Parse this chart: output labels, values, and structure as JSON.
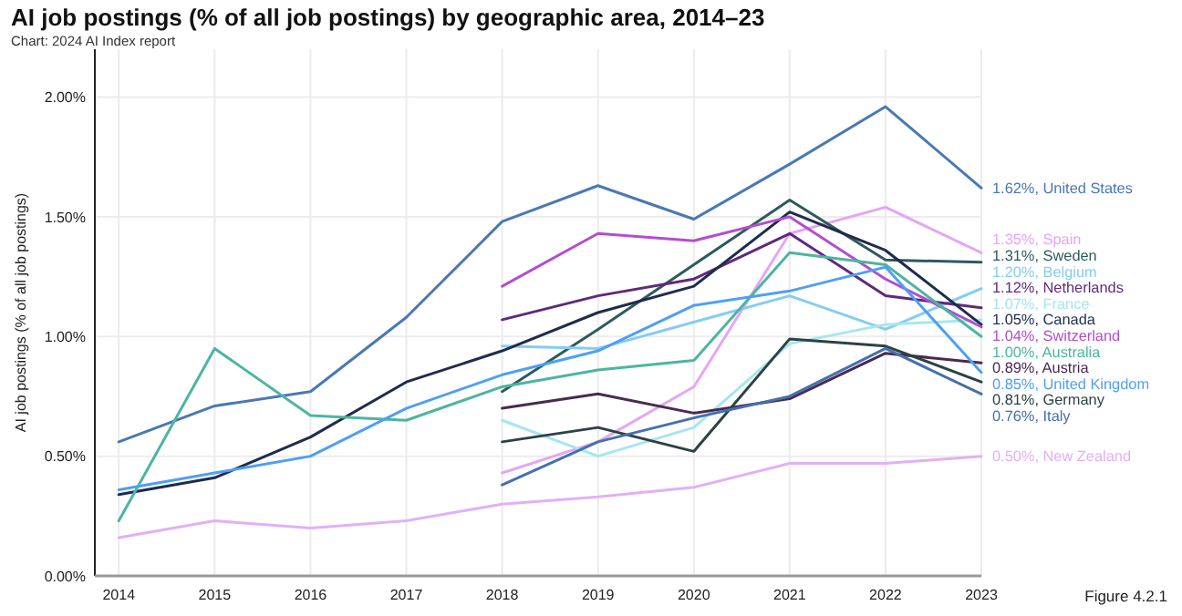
{
  "chart_data": {
    "type": "line",
    "title": "AI job postings (% of all job postings) by geographic area, 2014–23",
    "subtitle": "Chart: 2024 AI Index report",
    "ylabel": "AI job postings (% of all job postings)",
    "annotations": [
      "Figure 4.2.1"
    ],
    "xlim": [
      2013.75,
      2023
    ],
    "xticks": [
      2014,
      2015,
      2016,
      2017,
      2018,
      2019,
      2020,
      2021,
      2022,
      2023
    ],
    "ylim": [
      0,
      2.2
    ],
    "yticks": [
      {
        "value": 0,
        "label": "0.00%"
      },
      {
        "value": 0.5,
        "label": "0.50%"
      },
      {
        "value": 1,
        "label": "1.00%"
      },
      {
        "value": 1.5,
        "label": "1.50%"
      },
      {
        "value": 2,
        "label": "2.00%"
      }
    ],
    "grid": true,
    "marker": "none",
    "line_style": "solid",
    "x": [
      2014,
      2015,
      2016,
      2017,
      2018,
      2019,
      2020,
      2021,
      2022,
      2023
    ],
    "series": [
      {
        "color": "#4a78b5",
        "values": [
          0.56,
          0.71,
          0.77,
          1.08,
          1.48,
          1.63,
          1.49,
          1.72,
          1.96,
          1.62
        ],
        "value_labels": [
          null,
          null,
          null,
          null,
          null,
          null,
          null,
          null,
          null,
          "1.62%, United States"
        ]
      },
      {
        "color": "#e4a6f5",
        "values": [
          null,
          null,
          null,
          null,
          0.43,
          0.56,
          0.79,
          1.43,
          1.54,
          1.35
        ],
        "value_labels": [
          null,
          null,
          null,
          null,
          null,
          null,
          null,
          null,
          null,
          "1.35%, Spain"
        ]
      },
      {
        "color": "#2e5a5c",
        "values": [
          null,
          null,
          null,
          null,
          0.77,
          1.03,
          1.3,
          1.57,
          1.32,
          1.31
        ],
        "value_labels": [
          null,
          null,
          null,
          null,
          null,
          null,
          null,
          null,
          null,
          "1.31%, Sweden"
        ]
      },
      {
        "color": "#86ccf2",
        "values": [
          null,
          null,
          null,
          null,
          0.96,
          0.95,
          1.06,
          1.17,
          1.03,
          1.2
        ],
        "value_labels": [
          null,
          null,
          null,
          null,
          null,
          null,
          null,
          null,
          null,
          "1.20%, Belgium"
        ]
      },
      {
        "color": "#5e2a7c",
        "values": [
          null,
          null,
          null,
          null,
          1.07,
          1.17,
          1.24,
          1.43,
          1.17,
          1.12
        ],
        "value_labels": [
          null,
          null,
          null,
          null,
          null,
          null,
          null,
          null,
          null,
          "1.12%, Netherlands"
        ]
      },
      {
        "color": "#a6e6ee",
        "values": [
          null,
          null,
          null,
          null,
          0.65,
          0.5,
          0.62,
          0.97,
          1.05,
          1.07
        ],
        "value_labels": [
          null,
          null,
          null,
          null,
          null,
          null,
          null,
          null,
          null,
          "1.07%, France"
        ]
      },
      {
        "color": "#1f2c4e",
        "values": [
          0.34,
          0.41,
          0.58,
          0.81,
          0.94,
          1.1,
          1.21,
          1.52,
          1.36,
          1.05
        ],
        "value_labels": [
          null,
          null,
          null,
          null,
          null,
          null,
          null,
          null,
          null,
          "1.05%, Canada"
        ]
      },
      {
        "color": "#b14fd0",
        "values": [
          null,
          null,
          null,
          null,
          1.21,
          1.43,
          1.4,
          1.5,
          1.24,
          1.04
        ],
        "value_labels": [
          null,
          null,
          null,
          null,
          null,
          null,
          null,
          null,
          null,
          "1.04%, Switzerland"
        ]
      },
      {
        "color": "#4db5a0",
        "values": [
          0.23,
          0.95,
          0.67,
          0.65,
          0.79,
          0.86,
          0.9,
          1.35,
          1.3,
          1.0
        ],
        "value_labels": [
          null,
          null,
          null,
          null,
          null,
          null,
          null,
          null,
          null,
          "1.00%, Australia"
        ]
      },
      {
        "color": "#4a2a50",
        "values": [
          null,
          null,
          null,
          null,
          0.7,
          0.76,
          0.68,
          0.74,
          0.93,
          0.89
        ],
        "value_labels": [
          null,
          null,
          null,
          null,
          null,
          null,
          null,
          null,
          null,
          "0.89%, Austria"
        ]
      },
      {
        "color": "#4f9ff5",
        "values": [
          0.36,
          0.43,
          0.5,
          0.7,
          0.84,
          0.94,
          1.13,
          1.19,
          1.29,
          0.85
        ],
        "value_labels": [
          null,
          null,
          null,
          null,
          null,
          null,
          null,
          null,
          null,
          "0.85%, United Kingdom"
        ]
      },
      {
        "color": "#2c4244",
        "values": [
          null,
          null,
          null,
          null,
          0.56,
          0.62,
          0.52,
          0.99,
          0.96,
          0.81
        ],
        "value_labels": [
          null,
          null,
          null,
          null,
          null,
          null,
          null,
          null,
          null,
          "0.81%, Germany"
        ]
      },
      {
        "color": "#4670ad",
        "values": [
          null,
          null,
          null,
          null,
          0.38,
          0.56,
          0.66,
          0.75,
          0.95,
          0.76
        ],
        "value_labels": [
          null,
          null,
          null,
          null,
          null,
          null,
          null,
          null,
          null,
          "0.76%, Italy"
        ]
      },
      {
        "color": "#e2b0f5",
        "values": [
          0.16,
          0.23,
          0.2,
          0.23,
          0.3,
          0.33,
          0.37,
          0.47,
          0.47,
          0.5
        ],
        "value_labels": [
          null,
          null,
          null,
          null,
          null,
          null,
          null,
          null,
          null,
          "0.50%, New Zealand"
        ]
      }
    ]
  }
}
